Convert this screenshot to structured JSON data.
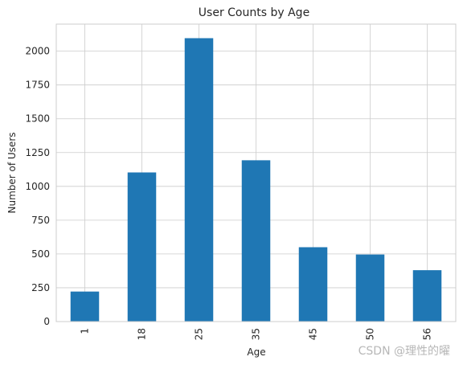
{
  "chart_data": {
    "type": "bar",
    "title": "User Counts by Age",
    "xlabel": "Age",
    "ylabel": "Number of Users",
    "categories": [
      "1",
      "18",
      "25",
      "35",
      "45",
      "50",
      "56"
    ],
    "values": [
      222,
      1103,
      2096,
      1193,
      550,
      496,
      380
    ],
    "ylim": [
      0,
      2200
    ],
    "yticks": [
      0,
      250,
      500,
      750,
      1000,
      1250,
      1500,
      1750,
      2000
    ],
    "ytick_labels": [
      "0",
      "250",
      "500",
      "750",
      "1000",
      "1250",
      "1500",
      "1750",
      "2000"
    ],
    "grid": true,
    "bar_color": "#1f77b4",
    "x_tick_rotation": 90
  },
  "watermark": "CSDN @理性的曜"
}
